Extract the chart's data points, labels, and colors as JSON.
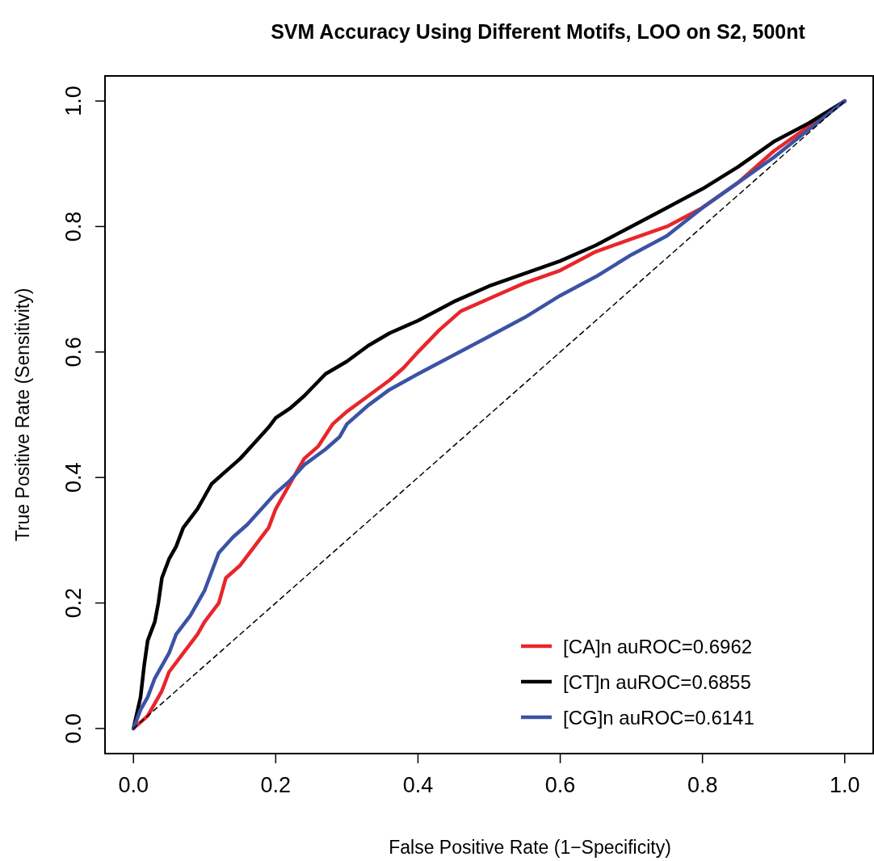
{
  "chart_data": {
    "type": "line",
    "title": "SVM Accuracy Using Different Motifs, LOO on S2, 500nt",
    "xlabel": "False Positive Rate (1−Specificity)",
    "ylabel": "True Positive Rate (Sensitivity)",
    "xlim": [
      -0.04,
      1.04
    ],
    "ylim": [
      -0.04,
      1.04
    ],
    "xticks": [
      {
        "value": 0,
        "label": "0.0"
      },
      {
        "value": 0.2,
        "label": "0.2"
      },
      {
        "value": 0.4,
        "label": "0.4"
      },
      {
        "value": 0.6,
        "label": "0.6"
      },
      {
        "value": 0.8,
        "label": "0.8"
      },
      {
        "value": 1,
        "label": "1.0"
      }
    ],
    "yticks": [
      {
        "value": 0,
        "label": "0.0"
      },
      {
        "value": 0.2,
        "label": "0.2"
      },
      {
        "value": 0.4,
        "label": "0.4"
      },
      {
        "value": 0.6,
        "label": "0.6"
      },
      {
        "value": 0.8,
        "label": "0.8"
      },
      {
        "value": 1,
        "label": "1.0"
      }
    ],
    "grid": false,
    "legend": "bottom right",
    "marker": "none",
    "series": [
      {
        "name": "[CA]n auROC=0.6962",
        "color": "#e8262b",
        "line_style": "solid",
        "x": [
          0,
          0.02,
          0.04,
          0.05,
          0.07,
          0.09,
          0.1,
          0.12,
          0.13,
          0.15,
          0.17,
          0.19,
          0.2,
          0.22,
          0.24,
          0.26,
          0.28,
          0.3,
          0.33,
          0.36,
          0.38,
          0.4,
          0.43,
          0.46,
          0.5,
          0.55,
          0.6,
          0.65,
          0.7,
          0.75,
          0.8,
          0.85,
          0.9,
          0.95,
          1
        ],
        "values": [
          0,
          0.02,
          0.06,
          0.09,
          0.12,
          0.15,
          0.17,
          0.2,
          0.24,
          0.26,
          0.29,
          0.32,
          0.35,
          0.39,
          0.43,
          0.45,
          0.485,
          0.505,
          0.53,
          0.555,
          0.575,
          0.6,
          0.635,
          0.665,
          0.685,
          0.71,
          0.73,
          0.76,
          0.78,
          0.8,
          0.83,
          0.87,
          0.92,
          0.96,
          1
        ]
      },
      {
        "name": "[CT]n auROC=0.6855",
        "color": "#000000",
        "line_style": "solid",
        "x": [
          0,
          0.01,
          0.015,
          0.02,
          0.03,
          0.035,
          0.04,
          0.05,
          0.06,
          0.07,
          0.09,
          0.1,
          0.11,
          0.13,
          0.15,
          0.17,
          0.19,
          0.2,
          0.22,
          0.24,
          0.27,
          0.3,
          0.33,
          0.36,
          0.4,
          0.45,
          0.5,
          0.55,
          0.6,
          0.65,
          0.7,
          0.75,
          0.8,
          0.85,
          0.9,
          0.95,
          1
        ],
        "values": [
          0,
          0.05,
          0.1,
          0.14,
          0.17,
          0.2,
          0.24,
          0.27,
          0.29,
          0.32,
          0.35,
          0.37,
          0.39,
          0.41,
          0.43,
          0.455,
          0.48,
          0.495,
          0.51,
          0.53,
          0.565,
          0.585,
          0.61,
          0.63,
          0.65,
          0.68,
          0.705,
          0.725,
          0.745,
          0.77,
          0.8,
          0.83,
          0.86,
          0.895,
          0.935,
          0.965,
          1
        ]
      },
      {
        "name": "[CG]n auROC=0.6141",
        "color": "#3a53a4",
        "line_style": "solid",
        "x": [
          0,
          0.01,
          0.02,
          0.03,
          0.05,
          0.06,
          0.08,
          0.1,
          0.11,
          0.12,
          0.14,
          0.16,
          0.18,
          0.2,
          0.22,
          0.24,
          0.27,
          0.29,
          0.3,
          0.33,
          0.36,
          0.4,
          0.45,
          0.5,
          0.55,
          0.6,
          0.65,
          0.7,
          0.75,
          0.8,
          0.85,
          0.9,
          0.95,
          1
        ],
        "values": [
          0,
          0.03,
          0.05,
          0.08,
          0.12,
          0.15,
          0.18,
          0.22,
          0.25,
          0.28,
          0.305,
          0.325,
          0.35,
          0.375,
          0.395,
          0.42,
          0.445,
          0.465,
          0.485,
          0.515,
          0.54,
          0.565,
          0.595,
          0.625,
          0.655,
          0.69,
          0.72,
          0.755,
          0.785,
          0.83,
          0.87,
          0.91,
          0.955,
          1
        ]
      },
      {
        "color": "#000000",
        "line_style": "dashed",
        "x": [
          0,
          1
        ],
        "values": [
          0,
          1
        ]
      }
    ]
  }
}
